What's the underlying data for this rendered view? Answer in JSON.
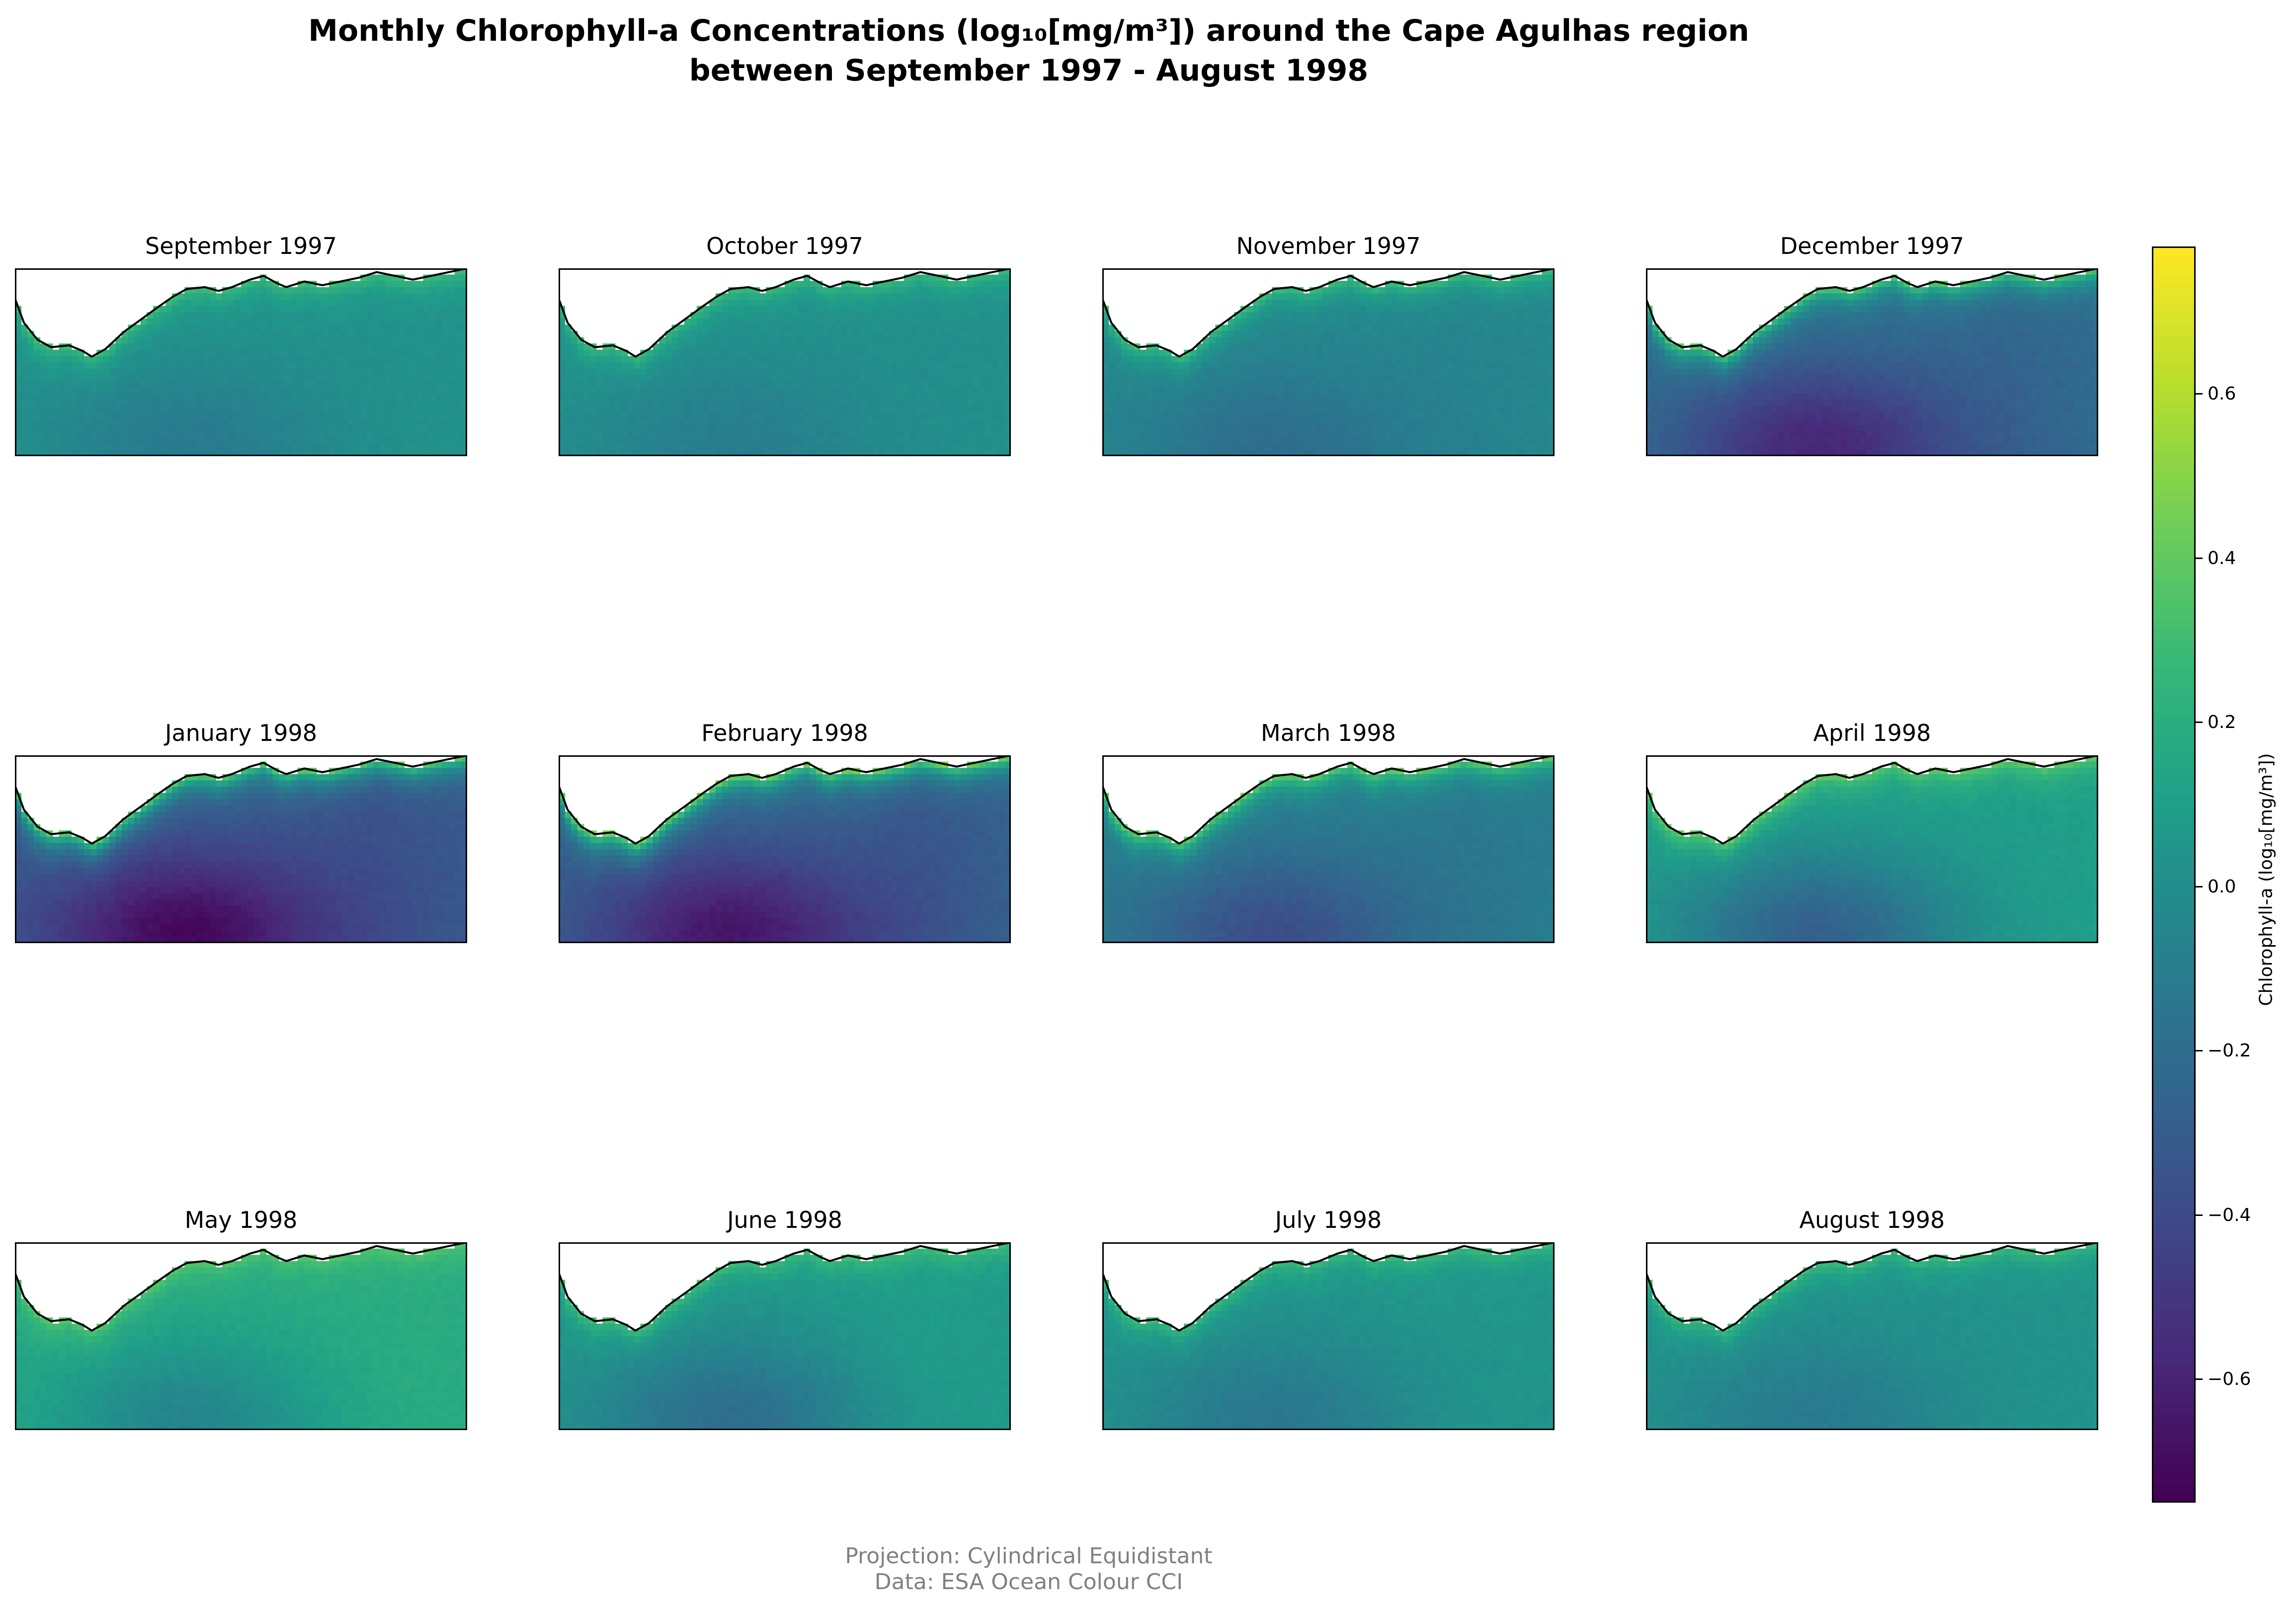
{
  "title_line1": "Monthly Chlorophyll-a Concentrations (log₁₀[mg/m³]) around the Cape Agulhas region",
  "title_line2": "between September 1997 - August 1998",
  "colorbar": {
    "label": "Chlorophyll-a (log₁₀[mg/m³])",
    "min": -0.75,
    "max": 0.78,
    "colormap": "viridis",
    "ticks": [
      {
        "value": 0.6,
        "label": "0.6"
      },
      {
        "value": 0.4,
        "label": "0.4"
      },
      {
        "value": 0.2,
        "label": "0.2"
      },
      {
        "value": 0.0,
        "label": "0.0"
      },
      {
        "value": -0.2,
        "label": "−0.2"
      },
      {
        "value": -0.4,
        "label": "−0.4"
      },
      {
        "value": -0.6,
        "label": "−0.6"
      }
    ]
  },
  "panels": [
    {
      "label": "September 1997",
      "base": 0.03,
      "coast": 0.32,
      "low": -0.12,
      "ridge": 0.02
    },
    {
      "label": "October 1997",
      "base": 0.02,
      "coast": 0.3,
      "low": -0.1,
      "ridge": 0.0
    },
    {
      "label": "November 1997",
      "base": -0.03,
      "coast": 0.32,
      "low": -0.2,
      "ridge": -0.08
    },
    {
      "label": "December 1997",
      "base": -0.2,
      "coast": 0.4,
      "low": -0.58,
      "ridge": -0.3
    },
    {
      "label": "January 1998",
      "base": -0.3,
      "coast": 0.42,
      "low": -0.72,
      "ridge": -0.42
    },
    {
      "label": "February 1998",
      "base": -0.26,
      "coast": 0.5,
      "low": -0.66,
      "ridge": -0.4
    },
    {
      "label": "March 1998",
      "base": -0.1,
      "coast": 0.44,
      "low": -0.38,
      "ridge": -0.16
    },
    {
      "label": "April 1998",
      "base": 0.1,
      "coast": 0.42,
      "low": -0.28,
      "ridge": 0.1
    },
    {
      "label": "May 1998",
      "base": 0.18,
      "coast": 0.38,
      "low": -0.05,
      "ridge": 0.2
    },
    {
      "label": "June 1998",
      "base": 0.06,
      "coast": 0.32,
      "low": -0.2,
      "ridge": 0.12
    },
    {
      "label": "July 1998",
      "base": 0.04,
      "coast": 0.3,
      "low": -0.14,
      "ridge": 0.06
    },
    {
      "label": "August 1998",
      "base": 0.03,
      "coast": 0.3,
      "low": -0.12,
      "ridge": 0.04
    }
  ],
  "footer_line1": "Projection: Cylindrical Equidistant",
  "footer_line2": "Data: ESA Ocean Colour CCI"
}
